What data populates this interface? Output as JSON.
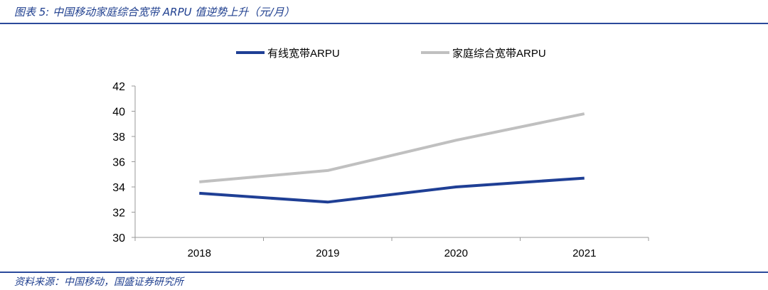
{
  "title": "图表 5:  中国移动家庭综合宽带 ARPU 值逆势上升（元/月）",
  "source": "资料来源：中国移动，国盛证券研究所",
  "colors": {
    "wired": "#1f3f95",
    "home": "#c0c0c0",
    "accent": "#2b4a9b"
  },
  "chart_data": {
    "type": "line",
    "title": "",
    "xlabel": "",
    "ylabel": "",
    "categories": [
      "2018",
      "2019",
      "2020",
      "2021"
    ],
    "ylim": [
      30,
      42
    ],
    "yticks": [
      "30",
      "32",
      "34",
      "36",
      "38",
      "40",
      "42"
    ],
    "grid": false,
    "legend_position": "top-center",
    "series": [
      {
        "name": "有线宽带ARPU",
        "values": [
          33.5,
          32.8,
          34.0,
          34.7
        ]
      },
      {
        "name": "家庭综合宽带ARPU",
        "values": [
          34.4,
          35.3,
          37.7,
          39.8
        ]
      }
    ]
  }
}
